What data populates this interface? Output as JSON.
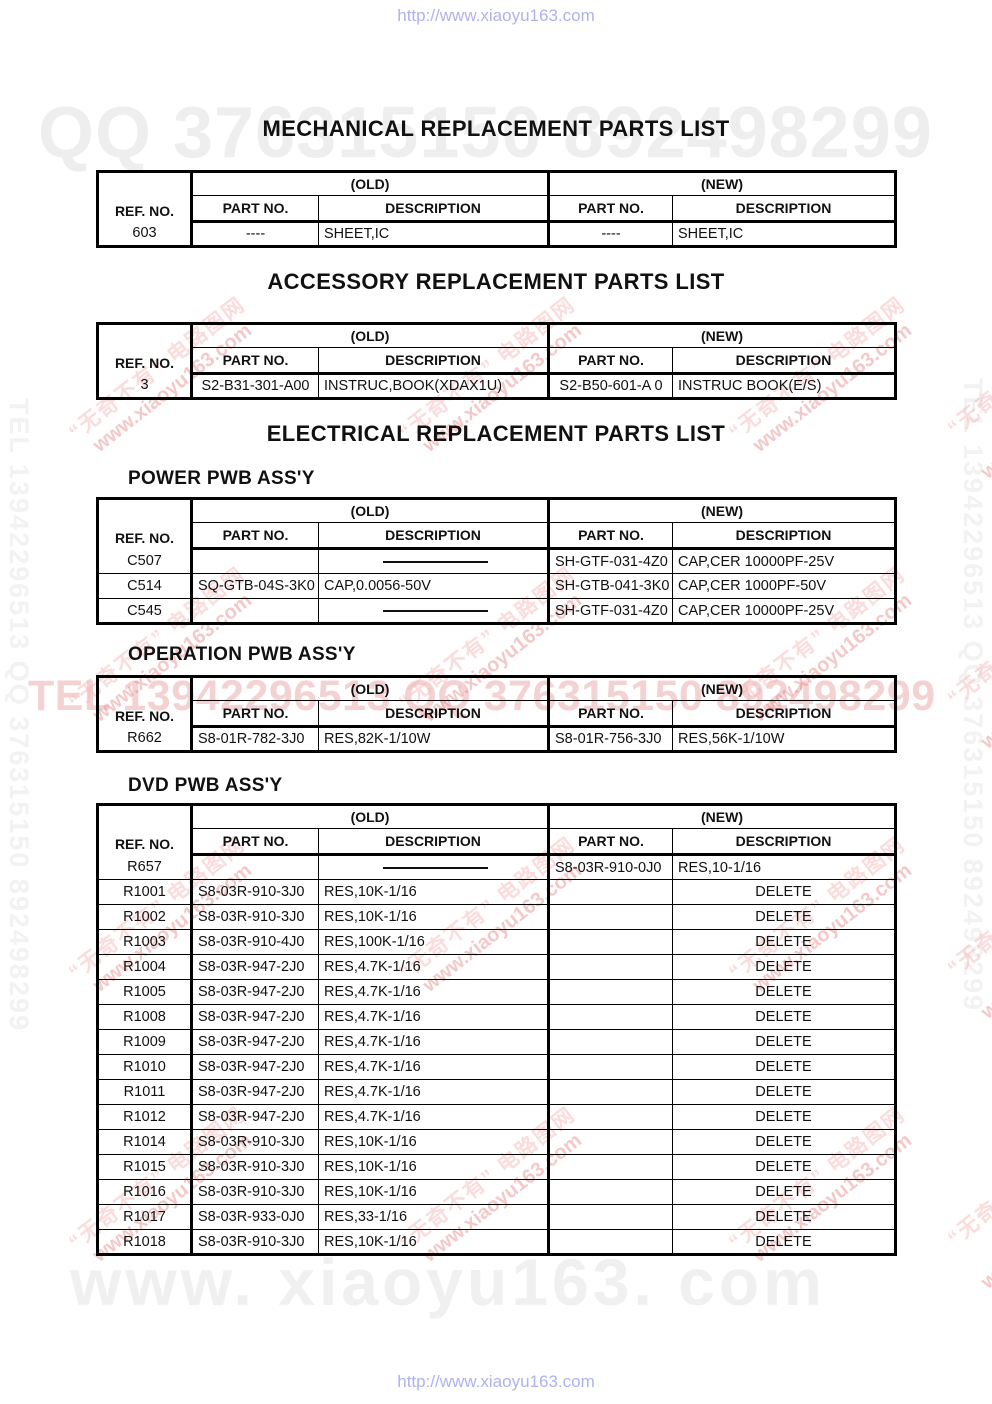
{
  "urls": {
    "top": "http://www.xiaoyu163.com",
    "bottom": "http://www.xiaoyu163.com"
  },
  "watermarks": {
    "top_banner": "QQ 376315150 892498299",
    "mid_banner": "TEL 13942296513 QQ 376315150 892498299",
    "bottom_banner": "www. xiaoyu163. com",
    "side_vertical": "TEL 13942296513 QQ 376315150 892498299",
    "diag_chinese": "“无奇不有” 电路图网",
    "diag_url": "www.xiaoyu163.com"
  },
  "colors": {
    "url_blue": "#aeb2ee",
    "banner_gray": "#eeeeee",
    "banner_pink": "#e28a8a",
    "diag_red": "#e98c8c",
    "diag_pink": "#f6b2b2"
  },
  "titles": {
    "mechanical": "MECHANICAL REPLACEMENT PARTS LIST",
    "accessory": "ACCESSORY REPLACEMENT PARTS LIST",
    "electrical": "ELECTRICAL REPLACEMENT PARTS LIST"
  },
  "subsections": {
    "power": "POWER PWB ASS'Y",
    "operation": "OPERATION PWB ASS'Y",
    "dvd": "DVD PWB ASS'Y"
  },
  "header_labels": {
    "ref_no": "REF. NO.",
    "old": "(OLD)",
    "new": "(NEW)",
    "part_no": "PART NO.",
    "description": "DESCRIPTION"
  },
  "tables": {
    "mechanical": {
      "rows": [
        [
          "603",
          "----",
          "SHEET,IC",
          "----",
          "SHEET,IC"
        ]
      ]
    },
    "accessory": {
      "rows": [
        [
          "3",
          "S2-B31-301-A00",
          "INSTRUC,BOOK(XDAX1U)",
          "S2-B50-601-A 0",
          "INSTRUC BOOK(E/S)"
        ]
      ]
    },
    "power": {
      "rows": [
        [
          "C507",
          "",
          "@line",
          "SH-GTF-031-4Z0",
          "CAP,CER 10000PF-25V"
        ],
        [
          "C514",
          "SQ-GTB-04S-3K0",
          "CAP,0.0056-50V",
          "SH-GTB-041-3K0",
          "CAP,CER 1000PF-50V"
        ],
        [
          "C545",
          "",
          "@line",
          "SH-GTF-031-4Z0",
          "CAP,CER 10000PF-25V"
        ]
      ]
    },
    "operation": {
      "rows": [
        [
          "R662",
          "S8-01R-782-3J0",
          "RES,82K-1/10W",
          "S8-01R-756-3J0",
          "RES,56K-1/10W"
        ]
      ]
    },
    "dvd": {
      "rows": [
        [
          "R657",
          "",
          "@line",
          "S8-03R-910-0J0",
          "RES,10-1/16"
        ],
        [
          "R1001",
          "S8-03R-910-3J0",
          "RES,10K-1/16",
          "",
          "DELETE"
        ],
        [
          "R1002",
          "S8-03R-910-3J0",
          "RES,10K-1/16",
          "",
          "DELETE"
        ],
        [
          "R1003",
          "S8-03R-910-4J0",
          "RES,100K-1/16",
          "",
          "DELETE"
        ],
        [
          "R1004",
          "S8-03R-947-2J0",
          "RES,4.7K-1/16",
          "",
          "DELETE"
        ],
        [
          "R1005",
          "S8-03R-947-2J0",
          "RES,4.7K-1/16",
          "",
          "DELETE"
        ],
        [
          "R1008",
          "S8-03R-947-2J0",
          "RES,4.7K-1/16",
          "",
          "DELETE"
        ],
        [
          "R1009",
          "S8-03R-947-2J0",
          "RES,4.7K-1/16",
          "",
          "DELETE"
        ],
        [
          "R1010",
          "S8-03R-947-2J0",
          "RES,4.7K-1/16",
          "",
          "DELETE"
        ],
        [
          "R1011",
          "S8-03R-947-2J0",
          "RES,4.7K-1/16",
          "",
          "DELETE"
        ],
        [
          "R1012",
          "S8-03R-947-2J0",
          "RES,4.7K-1/16",
          "",
          "DELETE"
        ],
        [
          "R1014",
          "S8-03R-910-3J0",
          "RES,10K-1/16",
          "",
          "DELETE"
        ],
        [
          "R1015",
          "S8-03R-910-3J0",
          "RES,10K-1/16",
          "",
          "DELETE"
        ],
        [
          "R1016",
          "S8-03R-910-3J0",
          "RES,10K-1/16",
          "",
          "DELETE"
        ],
        [
          "R1017",
          "S8-03R-933-0J0",
          "RES,33-1/16",
          "",
          "DELETE"
        ],
        [
          "R1018",
          "S8-03R-910-3J0",
          "RES,10K-1/16",
          "",
          "DELETE"
        ]
      ]
    }
  }
}
